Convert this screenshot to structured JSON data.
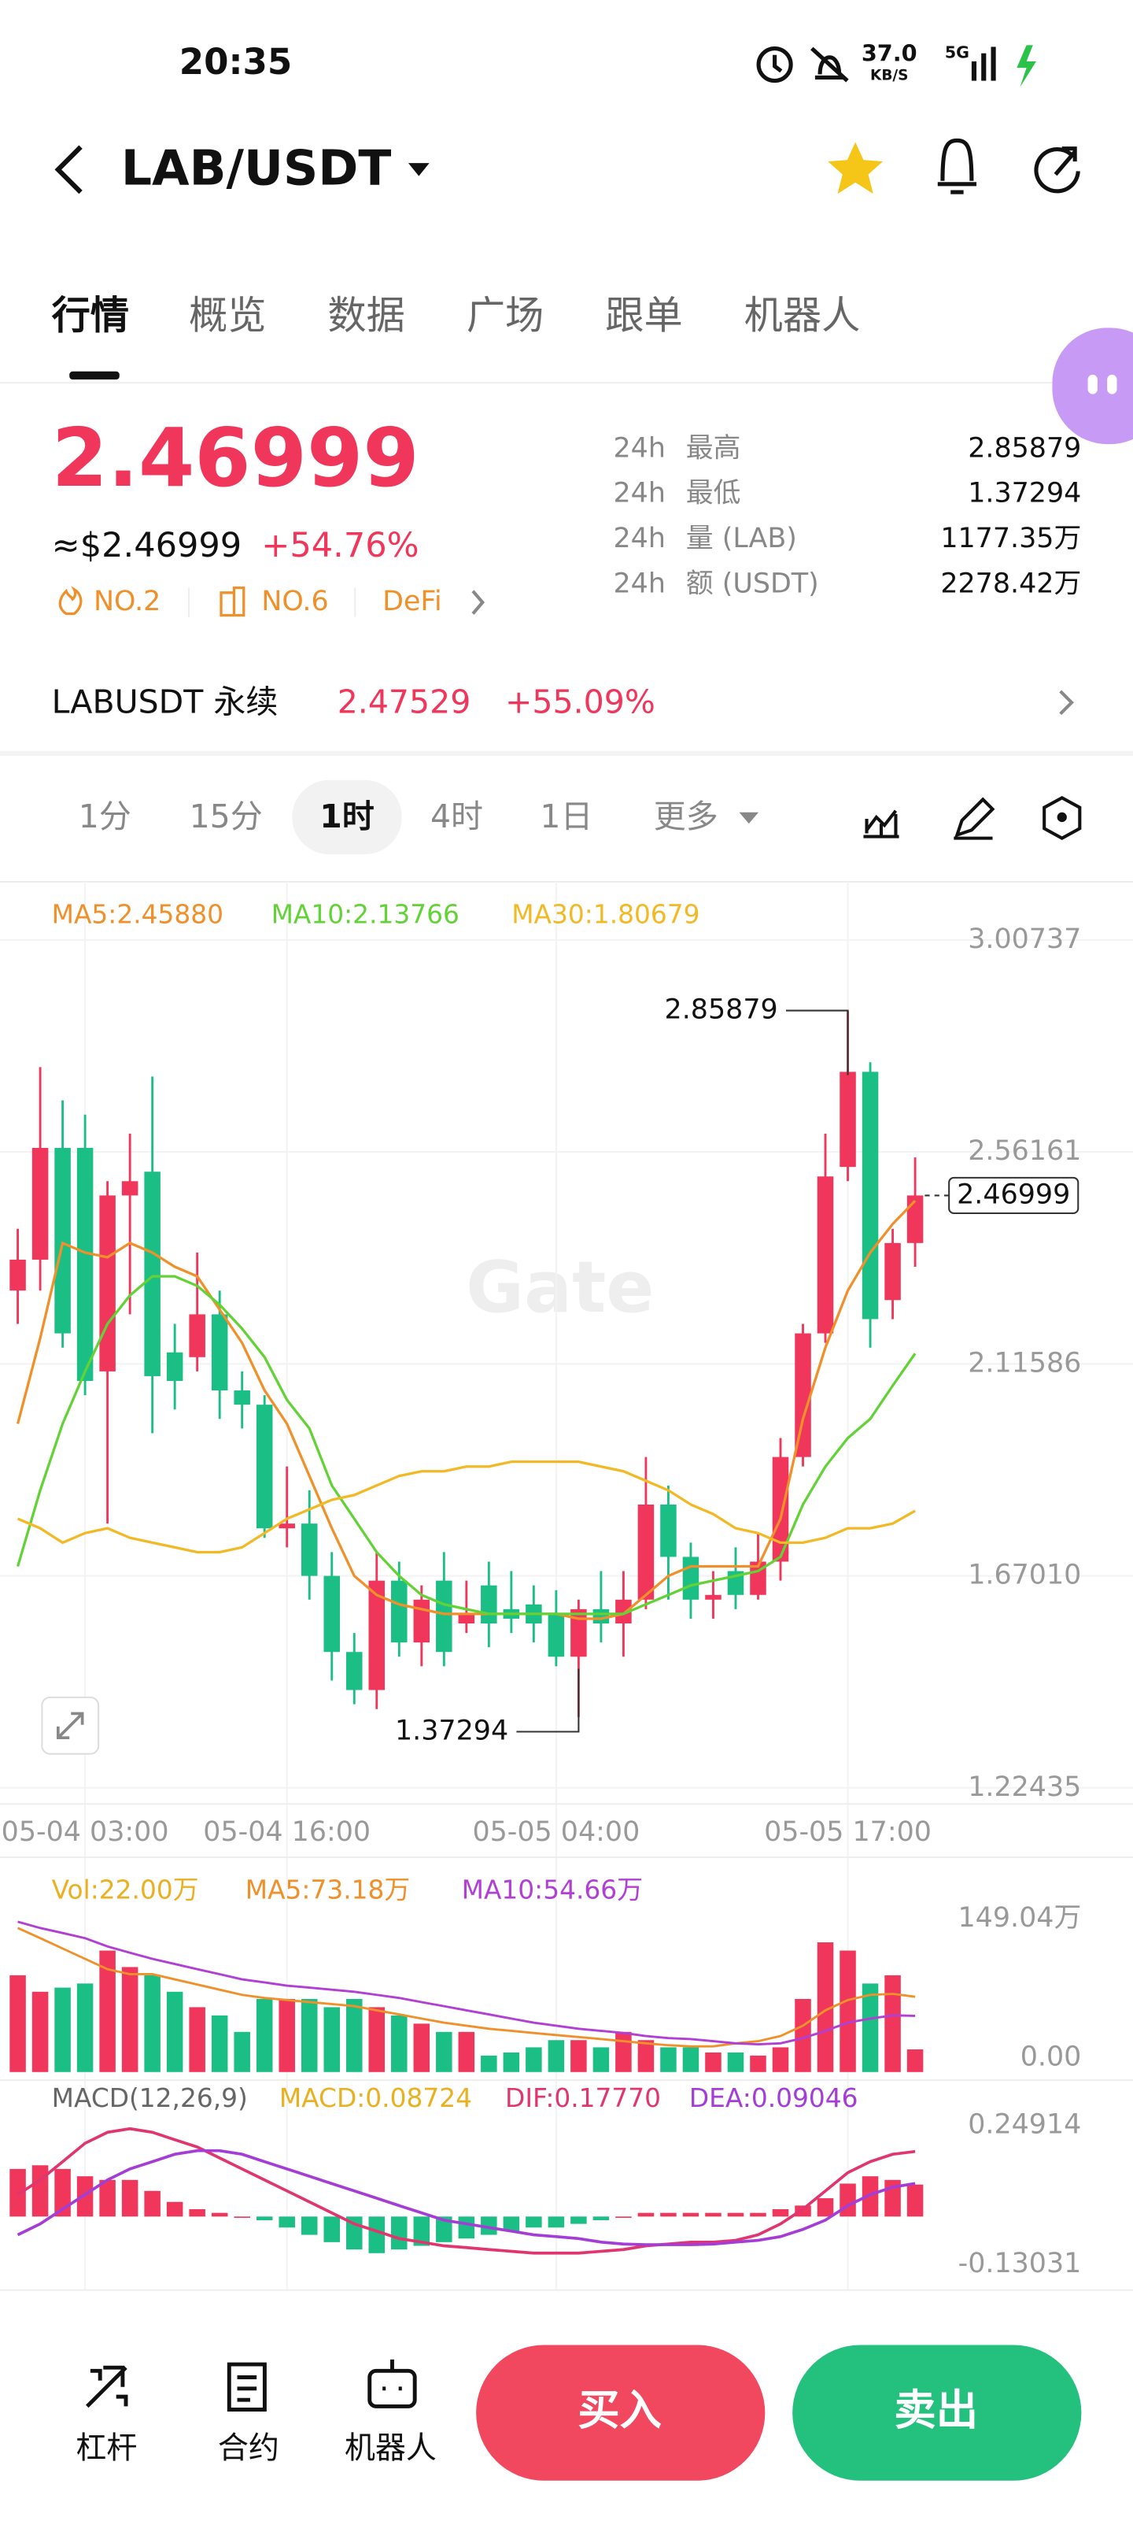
{
  "status_bar": {
    "time": "20:35",
    "speed": "37.0",
    "speed_unit": "KB/S",
    "network": "5G"
  },
  "header": {
    "pair": "LAB/USDT"
  },
  "tabs": [
    "行情",
    "概览",
    "数据",
    "广场",
    "跟单",
    "机器人"
  ],
  "price": {
    "last": "2.46999",
    "usd": "≈$2.46999",
    "change": "+54.76%",
    "tags": [
      "NO.2",
      "NO.6",
      "DeFi"
    ]
  },
  "stats": [
    {
      "period": "24h",
      "label": "最高",
      "value": "2.85879"
    },
    {
      "period": "24h",
      "label": "最低",
      "value": "1.37294"
    },
    {
      "period": "24h",
      "label": "量 (LAB)",
      "value": "1177.35万"
    },
    {
      "period": "24h",
      "label": "额 (USDT)",
      "value": "2278.42万"
    }
  ],
  "perpetual": {
    "name": "LABUSDT 永续",
    "price": "2.47529",
    "change": "+55.09%"
  },
  "intervals": [
    "1分",
    "15分",
    "1时",
    "4时",
    "1日",
    "更多"
  ],
  "watermark": "Gate",
  "chart_data": [
    {
      "type": "candlestick",
      "categories": [
        null,
        null,
        null,
        "05-04 03:00",
        null,
        null,
        null,
        null,
        null,
        null,
        null,
        null,
        "05-04 16:00",
        null,
        null,
        null,
        null,
        null,
        null,
        null,
        null,
        null,
        null,
        null,
        "05-05 04:00",
        null,
        null,
        null,
        null,
        null,
        null,
        null,
        null,
        null,
        null,
        null,
        null,
        "05-05 17:00",
        null,
        null,
        null
      ],
      "ohlc": [
        [
          2.27,
          2.4,
          2.2,
          2.335
        ],
        [
          2.335,
          2.74,
          2.27,
          2.57
        ],
        [
          2.57,
          2.67,
          2.15,
          2.18
        ],
        [
          2.57,
          2.64,
          2.05,
          2.08
        ],
        [
          2.1,
          2.5,
          1.78,
          2.47
        ],
        [
          2.47,
          2.6,
          2.22,
          2.5
        ],
        [
          2.52,
          2.72,
          1.97,
          2.09
        ],
        [
          2.14,
          2.2,
          2.02,
          2.08
        ],
        [
          2.13,
          2.35,
          2.1,
          2.22
        ],
        [
          2.22,
          2.27,
          2.0,
          2.06
        ],
        [
          2.06,
          2.1,
          1.98,
          2.03
        ],
        [
          2.03,
          2.05,
          1.75,
          1.77
        ],
        [
          1.77,
          1.9,
          1.73,
          1.78
        ],
        [
          1.78,
          1.85,
          1.62,
          1.67
        ],
        [
          1.67,
          1.72,
          1.45,
          1.51
        ],
        [
          1.51,
          1.55,
          1.4,
          1.43
        ],
        [
          1.43,
          1.72,
          1.39,
          1.66
        ],
        [
          1.66,
          1.7,
          1.5,
          1.53
        ],
        [
          1.53,
          1.65,
          1.48,
          1.62
        ],
        [
          1.66,
          1.72,
          1.48,
          1.51
        ],
        [
          1.57,
          1.66,
          1.55,
          1.59
        ],
        [
          1.65,
          1.7,
          1.52,
          1.57
        ],
        [
          1.6,
          1.68,
          1.55,
          1.58
        ],
        [
          1.61,
          1.65,
          1.53,
          1.57
        ],
        [
          1.59,
          1.64,
          1.48,
          1.5
        ],
        [
          1.5,
          1.62,
          1.37294,
          1.6
        ],
        [
          1.6,
          1.68,
          1.53,
          1.57
        ],
        [
          1.57,
          1.68,
          1.5,
          1.62
        ],
        [
          1.62,
          1.92,
          1.6,
          1.82
        ],
        [
          1.82,
          1.86,
          1.62,
          1.71
        ],
        [
          1.71,
          1.74,
          1.58,
          1.62
        ],
        [
          1.62,
          1.68,
          1.58,
          1.63
        ],
        [
          1.68,
          1.73,
          1.6,
          1.63
        ],
        [
          1.63,
          1.76,
          1.62,
          1.7
        ],
        [
          1.7,
          1.96,
          1.66,
          1.92
        ],
        [
          1.92,
          2.2,
          1.9,
          2.18
        ],
        [
          2.18,
          2.6,
          2.16,
          2.51
        ],
        [
          2.53,
          2.85879,
          2.5,
          2.73
        ],
        [
          2.73,
          2.75,
          2.15,
          2.21
        ],
        [
          2.25,
          2.4,
          2.21,
          2.37
        ],
        [
          2.37,
          2.55,
          2.32,
          2.46999
        ]
      ],
      "up_color": "#f0365a",
      "down_color": "#1bbf86",
      "series": [
        {
          "name": "MA5:2.45880",
          "color": "#f0902a",
          "values": [
            1.99,
            2.17,
            2.37,
            2.35,
            2.34,
            2.37,
            2.35,
            2.32,
            2.3,
            2.23,
            2.16,
            2.06,
            1.99,
            1.88,
            1.77,
            1.67,
            1.63,
            1.61,
            1.6,
            1.59,
            1.59,
            1.59,
            1.59,
            1.59,
            1.59,
            1.58,
            1.58,
            1.59,
            1.63,
            1.67,
            1.69,
            1.69,
            1.69,
            1.69,
            1.79,
            2.0,
            2.15,
            2.27,
            2.35,
            2.41,
            2.4588
          ]
        },
        {
          "name": "MA10:2.13766",
          "color": "#62d236",
          "values": [
            1.69,
            1.85,
            1.99,
            2.1,
            2.2,
            2.26,
            2.3,
            2.3,
            2.28,
            2.24,
            2.19,
            2.13,
            2.04,
            1.98,
            1.86,
            1.79,
            1.72,
            1.67,
            1.63,
            1.61,
            1.6,
            1.59,
            1.59,
            1.59,
            1.59,
            1.59,
            1.59,
            1.59,
            1.61,
            1.63,
            1.65,
            1.66,
            1.67,
            1.68,
            1.71,
            1.82,
            1.9,
            1.96,
            2.0,
            2.07,
            2.13766
          ]
        },
        {
          "name": "MA30:1.80679",
          "color": "#f2b925",
          "values": [
            1.79,
            1.77,
            1.74,
            1.76,
            1.77,
            1.75,
            1.74,
            1.73,
            1.72,
            1.72,
            1.73,
            1.76,
            1.79,
            1.81,
            1.83,
            1.84,
            1.86,
            1.88,
            1.89,
            1.89,
            1.9,
            1.9,
            1.91,
            1.91,
            1.91,
            1.91,
            1.9,
            1.89,
            1.87,
            1.85,
            1.82,
            1.8,
            1.77,
            1.76,
            1.74,
            1.74,
            1.75,
            1.77,
            1.77,
            1.78,
            1.80679
          ]
        }
      ],
      "annotations": {
        "high": "2.85879",
        "low": "1.37294",
        "last": "2.46999"
      },
      "ylim": [
        1.22435,
        3.00737
      ],
      "yticks": [
        3.00737,
        2.56161,
        2.11586,
        {
          "value": 1.6701,
          "label": "1.67010"
        },
        1.22435
      ],
      "grid": true
    },
    {
      "type": "bar",
      "name": "Vol:22.00万",
      "color": "#e9b021",
      "values": [
        94,
        78,
        82,
        86,
        118,
        102,
        94,
        78,
        63,
        55,
        39,
        71,
        71,
        71,
        63,
        71,
        63,
        55,
        47,
        39,
        39,
        16,
        19,
        24,
        31,
        31,
        24,
        39,
        31,
        24,
        24,
        19,
        19,
        16,
        24,
        71,
        126,
        118,
        86,
        94,
        22
      ],
      "series": [
        {
          "name": "MA5:73.18万",
          "color": "#f0902a",
          "values": [
            140,
            130,
            120,
            110,
            100,
            95,
            95,
            90,
            85,
            80,
            75,
            72,
            70,
            68,
            66,
            64,
            60,
            56,
            52,
            48,
            45,
            42,
            40,
            38,
            36,
            34,
            32,
            30,
            28,
            26,
            25,
            25,
            28,
            30,
            35,
            45,
            60,
            70,
            75,
            76,
            73.18
          ]
        },
        {
          "name": "MA10:54.66万",
          "color": "#b13fd4",
          "values": [
            146,
            140,
            135,
            130,
            122,
            116,
            110,
            105,
            100,
            95,
            90,
            87,
            84,
            82,
            80,
            78,
            75,
            72,
            68,
            64,
            60,
            56,
            52,
            48,
            45,
            42,
            40,
            38,
            35,
            33,
            32,
            30,
            28,
            27,
            28,
            33,
            40,
            48,
            52,
            55,
            54.66
          ]
        }
      ],
      "ylim": [
        0,
        149.04
      ],
      "yticks": [
        {
          "value": 149.04,
          "label": "149.04万"
        },
        {
          "value": 0,
          "label": "0.00"
        }
      ]
    },
    {
      "type": "macd",
      "title": "MACD(12,26,9)",
      "name": "MACD:0.08724",
      "color": "#e9b021",
      "values": [
        0.13,
        0.14,
        0.13,
        0.11,
        0.1,
        0.1,
        0.07,
        0.04,
        0.02,
        0.01,
        0.0,
        -0.01,
        -0.03,
        -0.05,
        -0.07,
        -0.09,
        -0.1,
        -0.09,
        -0.08,
        -0.07,
        -0.06,
        -0.05,
        -0.04,
        -0.03,
        -0.03,
        -0.02,
        -0.01,
        0.0,
        0.01,
        0.01,
        0.01,
        0.01,
        0.01,
        0.01,
        0.02,
        0.03,
        0.05,
        0.09,
        0.11,
        0.1,
        0.08724
      ],
      "series": [
        {
          "name": "DIF:0.17770",
          "color": "#e0356e",
          "values": [
            0.06,
            0.1,
            0.15,
            0.2,
            0.23,
            0.24,
            0.23,
            0.21,
            0.19,
            0.16,
            0.13,
            0.1,
            0.07,
            0.04,
            0.01,
            -0.02,
            -0.04,
            -0.06,
            -0.07,
            -0.08,
            -0.085,
            -0.09,
            -0.095,
            -0.1,
            -0.1,
            -0.1,
            -0.095,
            -0.09,
            -0.08,
            -0.075,
            -0.07,
            -0.07,
            -0.065,
            -0.05,
            -0.02,
            0.02,
            0.07,
            0.12,
            0.15,
            0.17,
            0.1777
          ]
        },
        {
          "name": "DEA:0.09046",
          "color": "#a43dd6",
          "values": [
            -0.05,
            -0.02,
            0.02,
            0.06,
            0.1,
            0.13,
            0.15,
            0.17,
            0.18,
            0.18,
            0.17,
            0.15,
            0.13,
            0.11,
            0.09,
            0.07,
            0.05,
            0.03,
            0.01,
            -0.01,
            -0.02,
            -0.03,
            -0.04,
            -0.05,
            -0.055,
            -0.06,
            -0.07,
            -0.075,
            -0.077,
            -0.077,
            -0.077,
            -0.075,
            -0.07,
            -0.065,
            -0.055,
            -0.035,
            -0.01,
            0.03,
            0.06,
            0.08,
            0.09046
          ]
        }
      ],
      "ylim": [
        -0.13031,
        0.24914
      ],
      "yticks": [
        0.24914,
        -0.13031
      ]
    }
  ],
  "bottom_bar": {
    "tools": [
      "杠杆",
      "合约",
      "机器人"
    ],
    "buy": "买入",
    "sell": "卖出"
  }
}
